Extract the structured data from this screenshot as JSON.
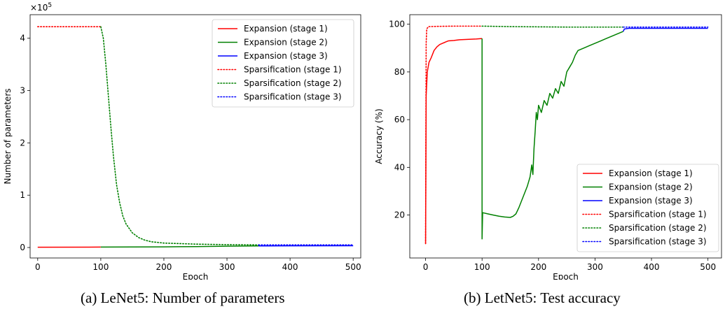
{
  "chart_data": [
    {
      "type": "line",
      "caption": "(a) LeNet5: Number of parameters",
      "xlabel": "Epoch",
      "ylabel": "Number of parameters",
      "offset_text": "×10",
      "offset_exp": "5",
      "xlim": [
        -12,
        512
      ],
      "ylim": [
        -0.2,
        4.45
      ],
      "xticks": [
        0,
        100,
        200,
        300,
        400,
        500
      ],
      "yticks": [
        0,
        1,
        2,
        3,
        4
      ],
      "x_tick_labels": [
        "0",
        "100",
        "200",
        "300",
        "400",
        "500"
      ],
      "y_tick_labels": [
        "0",
        "1",
        "2",
        "3",
        "4"
      ],
      "grid": false,
      "legend_position": "top-right",
      "series": [
        {
          "name": "Expansion (stage 1)",
          "color": "#ff0000",
          "dash": "solid",
          "points": [
            [
              0,
              0.005
            ],
            [
              100,
              0.008
            ]
          ]
        },
        {
          "name": "Expansion (stage 2)",
          "color": "#008000",
          "dash": "solid",
          "points": [
            [
              100,
              0.008
            ],
            [
              150,
              0.01
            ],
            [
              200,
              0.012
            ],
            [
              250,
              0.018
            ],
            [
              300,
              0.025
            ],
            [
              350,
              0.03
            ]
          ]
        },
        {
          "name": "Expansion (stage 3)",
          "color": "#0000ff",
          "dash": "solid",
          "points": [
            [
              350,
              0.03
            ],
            [
              400,
              0.032
            ],
            [
              500,
              0.033
            ]
          ]
        },
        {
          "name": "Sparsification (stage 1)",
          "color": "#ff0000",
          "dash": "dotted",
          "points": [
            [
              0,
              4.22
            ],
            [
              100,
              4.22
            ]
          ]
        },
        {
          "name": "Sparsification (stage 2)",
          "color": "#008000",
          "dash": "dotted",
          "points": [
            [
              100,
              4.22
            ],
            [
              104,
              4.0
            ],
            [
              108,
              3.5
            ],
            [
              112,
              2.9
            ],
            [
              116,
              2.3
            ],
            [
              120,
              1.75
            ],
            [
              125,
              1.2
            ],
            [
              130,
              0.85
            ],
            [
              135,
              0.6
            ],
            [
              140,
              0.45
            ],
            [
              150,
              0.28
            ],
            [
              160,
              0.19
            ],
            [
              170,
              0.14
            ],
            [
              180,
              0.11
            ],
            [
              200,
              0.085
            ],
            [
              250,
              0.065
            ],
            [
              300,
              0.055
            ],
            [
              350,
              0.05
            ]
          ]
        },
        {
          "name": "Sparsification (stage 3)",
          "color": "#0000ff",
          "dash": "dotted",
          "points": [
            [
              350,
              0.05
            ],
            [
              400,
              0.05
            ],
            [
              500,
              0.05
            ]
          ]
        }
      ]
    },
    {
      "type": "line",
      "caption": "(b) LetNet5: Test accuracy",
      "xlabel": "Epoch",
      "ylabel": "Accuracy (%)",
      "xlim": [
        -28,
        524
      ],
      "ylim": [
        2,
        104
      ],
      "xticks": [
        0,
        100,
        200,
        300,
        400,
        500
      ],
      "yticks": [
        20,
        40,
        60,
        80,
        100
      ],
      "x_tick_labels": [
        "0",
        "100",
        "200",
        "300",
        "400",
        "500"
      ],
      "y_tick_labels": [
        "20",
        "40",
        "60",
        "80",
        "100"
      ],
      "grid": false,
      "legend_position": "bottom-right",
      "series": [
        {
          "name": "Expansion (stage 1)",
          "color": "#ff0000",
          "dash": "solid",
          "points": [
            [
              0,
              8
            ],
            [
              1,
              70
            ],
            [
              3,
              80
            ],
            [
              6,
              84
            ],
            [
              10,
              86
            ],
            [
              15,
              89
            ],
            [
              20,
              90.5
            ],
            [
              25,
              91.5
            ],
            [
              30,
              92
            ],
            [
              35,
              92.5
            ],
            [
              40,
              93
            ],
            [
              50,
              93.2
            ],
            [
              60,
              93.5
            ],
            [
              70,
              93.6
            ],
            [
              80,
              93.7
            ],
            [
              90,
              93.8
            ],
            [
              100,
              94
            ]
          ]
        },
        {
          "name": "Expansion (stage 2)",
          "color": "#008000",
          "dash": "solid",
          "points": [
            [
              100,
              94
            ],
            [
              100,
              10
            ],
            [
              101,
              21
            ],
            [
              110,
              20.5
            ],
            [
              120,
              20
            ],
            [
              130,
              19.5
            ],
            [
              140,
              19.2
            ],
            [
              150,
              19
            ],
            [
              155,
              19.5
            ],
            [
              160,
              20.5
            ],
            [
              165,
              23
            ],
            [
              170,
              26
            ],
            [
              175,
              29
            ],
            [
              180,
              32
            ],
            [
              185,
              36
            ],
            [
              188,
              41
            ],
            [
              190,
              37
            ],
            [
              192,
              48
            ],
            [
              194,
              55
            ],
            [
              196,
              63
            ],
            [
              198,
              60
            ],
            [
              200,
              66
            ],
            [
              205,
              63
            ],
            [
              210,
              68
            ],
            [
              215,
              66
            ],
            [
              220,
              71
            ],
            [
              225,
              69
            ],
            [
              230,
              73
            ],
            [
              235,
              71
            ],
            [
              240,
              76
            ],
            [
              245,
              74
            ],
            [
              250,
              80
            ],
            [
              255,
              82
            ],
            [
              260,
              84
            ],
            [
              265,
              87
            ],
            [
              270,
              89
            ],
            [
              280,
              90
            ],
            [
              290,
              91
            ],
            [
              300,
              92
            ],
            [
              310,
              93
            ],
            [
              320,
              94
            ],
            [
              330,
              95
            ],
            [
              340,
              96
            ],
            [
              350,
              97
            ]
          ]
        },
        {
          "name": "Expansion (stage 3)",
          "color": "#0000ff",
          "dash": "solid",
          "points": [
            [
              350,
              97
            ],
            [
              352,
              98
            ],
            [
              360,
              98.3
            ],
            [
              400,
              98.3
            ],
            [
              450,
              98.3
            ],
            [
              500,
              98.3
            ]
          ]
        },
        {
          "name": "Sparsification (stage 1)",
          "color": "#ff0000",
          "dash": "dotted",
          "points": [
            [
              0,
              8
            ],
            [
              1,
              92
            ],
            [
              2,
              98
            ],
            [
              5,
              99
            ],
            [
              20,
              99.1
            ],
            [
              50,
              99.2
            ],
            [
              100,
              99.2
            ]
          ]
        },
        {
          "name": "Sparsification (stage 2)",
          "color": "#008000",
          "dash": "dotted",
          "points": [
            [
              100,
              99.2
            ],
            [
              150,
              99.0
            ],
            [
              200,
              98.9
            ],
            [
              250,
              98.8
            ],
            [
              300,
              98.8
            ],
            [
              350,
              98.8
            ]
          ]
        },
        {
          "name": "Sparsification (stage 3)",
          "color": "#0000ff",
          "dash": "dotted",
          "points": [
            [
              350,
              98.8
            ],
            [
              400,
              98.8
            ],
            [
              450,
              98.8
            ],
            [
              500,
              98.8
            ]
          ]
        }
      ]
    }
  ]
}
